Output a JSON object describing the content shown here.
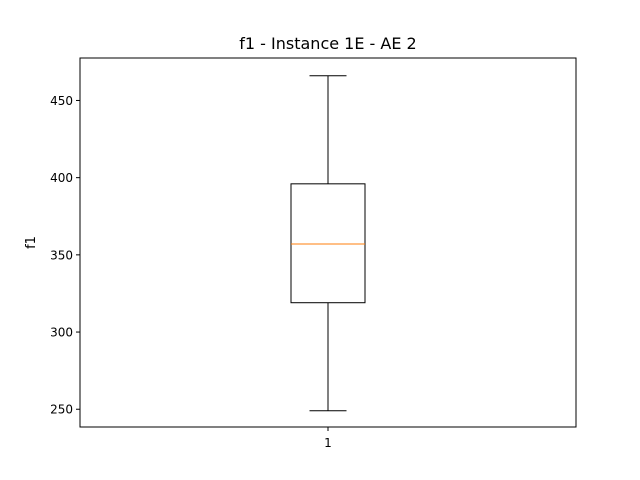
{
  "chart_data": {
    "type": "box",
    "title": "f1 - Instance 1E - AE 2",
    "xlabel": "",
    "ylabel": "f1",
    "categories": [
      "1"
    ],
    "ylim": [
      238.5,
      477.5
    ],
    "yticks": [
      250,
      300,
      350,
      400,
      450
    ],
    "grid": false,
    "boxes": [
      {
        "category": "1",
        "whisker_low": 249,
        "q1": 319,
        "median": 357,
        "q3": 396,
        "whisker_high": 466
      }
    ],
    "colors": {
      "box": "#000000",
      "median": "#ff7f0e",
      "axes": "#000000"
    }
  }
}
